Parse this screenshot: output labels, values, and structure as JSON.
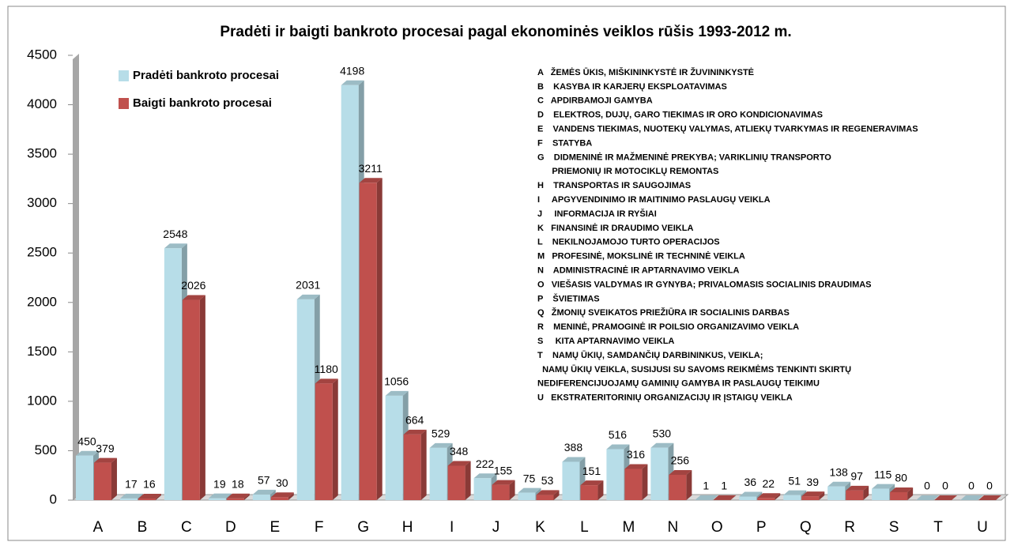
{
  "chart_data": {
    "type": "bar3d",
    "title": "Pradėti ir baigti bankroto procesai pagal ekonominės veiklos rūšis 1993-2012 m.",
    "categories": [
      "A",
      "B",
      "C",
      "D",
      "E",
      "F",
      "G",
      "H",
      "I",
      "J",
      "K",
      "L",
      "M",
      "N",
      "O",
      "P",
      "Q",
      "R",
      "S",
      "T",
      "U"
    ],
    "series": [
      {
        "name": "Pradėti bankroto procesai",
        "color": "#b7dde8",
        "values": [
          450,
          17,
          2548,
          19,
          57,
          2031,
          4198,
          1056,
          529,
          222,
          75,
          388,
          516,
          530,
          1,
          36,
          51,
          138,
          115,
          0,
          0
        ]
      },
      {
        "name": "Baigti bankroto procesai",
        "color": "#c0504d",
        "values": [
          379,
          16,
          2026,
          18,
          30,
          1180,
          3211,
          664,
          348,
          155,
          53,
          151,
          316,
          256,
          1,
          22,
          39,
          97,
          80,
          0,
          0
        ]
      }
    ],
    "ylim": [
      0,
      4500
    ],
    "yticks": [
      0,
      500,
      1000,
      1500,
      2000,
      2500,
      3000,
      3500,
      4000,
      4500
    ],
    "legend": "top-left",
    "annotations": [
      "A   ŽEMĖS ŪKIS, MIŠKININKYSTĖ IR ŽUVININKYSTĖ",
      "B    KASYBA IR KARJERŲ EKSPLOATAVIMAS",
      "C   APDIRBAMOJI GAMYBA",
      "D    ELEKTROS, DUJŲ, GARO TIEKIMAS IR ORO KONDICIONAVIMAS",
      "E    VANDENS TIEKIMAS, NUOTEKŲ VALYMAS, ATLIEKŲ TVARKYMAS IR REGENERAVIMAS",
      "F    STATYBA",
      "G    DIDMENINĖ IR MAŽMENINĖ PREKYBA; VARIKLINIŲ TRANSPORTO",
      "      PRIEMONIŲ IR MOTOCIKLŲ REMONTAS",
      "H    TRANSPORTAS IR SAUGOJIMAS",
      "I     APGYVENDINIMO IR MAITINIMO PASLAUGŲ VEIKLA",
      "J     INFORMACIJA IR RYŠIAI",
      "K   FINANSINĖ IR DRAUDIMO VEIKLA",
      "L    NEKILNOJAMOJO TURTO OPERACIJOS",
      "M   PROFESINĖ, MOKSLINĖ IR TECHNINĖ VEIKLA",
      "N    ADMINISTRACINĖ IR APTARNAVIMO VEIKLA",
      "O   VIEŠASIS VALDYMAS IR GYNYBA; PRIVALOMASIS SOCIALINIS DRAUDIMAS",
      "P    ŠVIETIMAS",
      "Q   ŽMONIŲ SVEIKATOS PRIEŽIŪRA IR SOCIALINIS DARBAS",
      "R    MENINĖ, PRAMOGINĖ IR POILSIO ORGANIZAVIMO VEIKLA",
      "S     KITA APTARNAVIMO VEIKLA",
      "T    NAMŲ ŪKIŲ, SAMDANČIŲ DARBININKUS, VEIKLA;",
      "  NAMŲ ŪKIŲ VEIKLA, SUSIJUSI SU SAVOMS REIKMĖMS TENKINTI SKIRTŲ",
      "NEDIFERENCIJUOJAMŲ GAMINIŲ GAMYBA IR PASLAUGŲ TEIKIMU",
      "U   EKSTRATERITORINIŲ ORGANIZACIJŲ IR ĮSTAIGŲ VEIKLA"
    ]
  }
}
